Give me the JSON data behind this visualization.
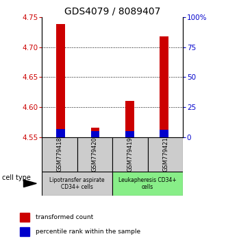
{
  "title": "GDS4079 / 8089407",
  "samples": [
    "GSM779418",
    "GSM779420",
    "GSM779419",
    "GSM779421"
  ],
  "red_values": [
    4.738,
    4.566,
    4.61,
    4.718
  ],
  "blue_percentiles": [
    7,
    5,
    5,
    6
  ],
  "ylim_left": [
    4.55,
    4.75
  ],
  "ylim_right": [
    0,
    100
  ],
  "yticks_left": [
    4.55,
    4.6,
    4.65,
    4.7,
    4.75
  ],
  "yticks_right": [
    0,
    25,
    50,
    75,
    100
  ],
  "ytick_labels_right": [
    "0",
    "25",
    "50",
    "75",
    "100%"
  ],
  "red_color": "#cc0000",
  "blue_color": "#0000cc",
  "group1_label": "Lipotransfer aspirate\nCD34+ cells",
  "group2_label": "Leukapheresis CD34+\ncells",
  "group1_color": "#cccccc",
  "group2_color": "#88ee88",
  "cell_type_label": "cell type",
  "legend_red": "transformed count",
  "legend_blue": "percentile rank within the sample",
  "title_fontsize": 10,
  "left_color": "#cc0000",
  "right_color": "#0000cc",
  "bar_width": 0.25
}
